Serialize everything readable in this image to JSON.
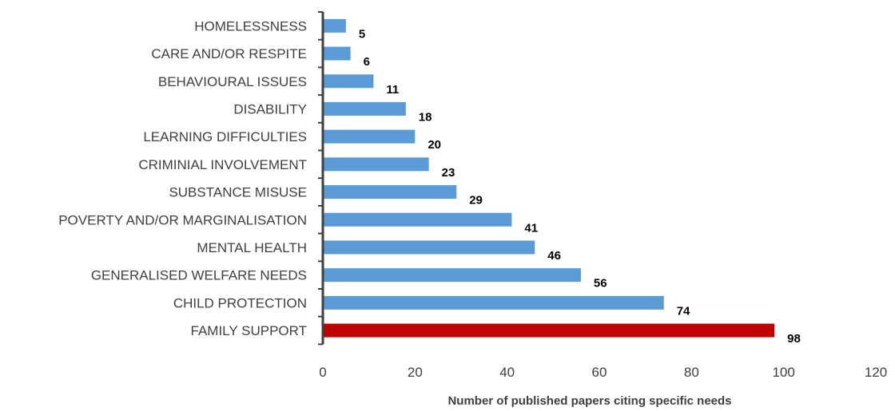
{
  "chart_data": {
    "type": "bar",
    "orientation": "horizontal",
    "categories": [
      "HOMELESSNESS",
      "CARE AND/OR RESPITE",
      "BEHAVIOURAL ISSUES",
      "DISABILITY",
      "LEARNING DIFFICULTIES",
      "CRIMINIAL INVOLVEMENT",
      "SUBSTANCE MISUSE",
      "POVERTY AND/OR MARGINALISATION",
      "MENTAL HEALTH",
      "GENERALISED WELFARE NEEDS",
      "CHILD PROTECTION",
      "FAMILY SUPPORT"
    ],
    "values": [
      5,
      6,
      11,
      18,
      20,
      23,
      29,
      41,
      46,
      56,
      74,
      98
    ],
    "xlabel": "Number of published papers citing specific needs",
    "ylabel": "",
    "xlim": [
      0,
      120
    ],
    "x_ticks": [
      "0",
      "20",
      "40",
      "60",
      "80",
      "100",
      "120"
    ],
    "grid": false,
    "legend": "none",
    "bar_color": "#5b9bd5",
    "highlight_color": "#c00000",
    "highlight_category": "FAMILY SUPPORT"
  }
}
